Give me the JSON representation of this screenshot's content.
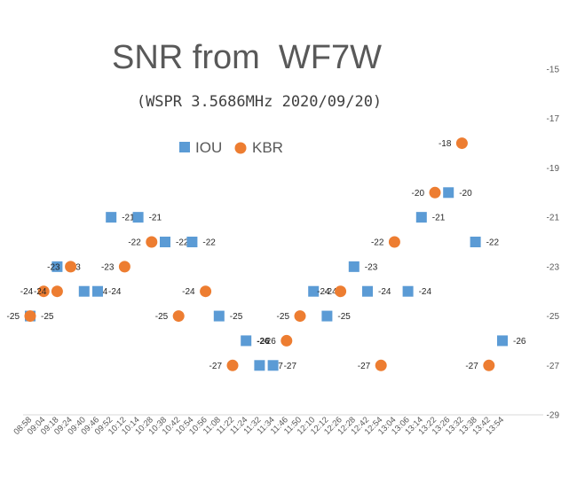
{
  "chart_data": {
    "type": "scatter",
    "title": "SNR from  WF7W",
    "subtitle": "(WSPR 3.5686MHz 2020/09/20)",
    "xlabel": "",
    "ylabel": "",
    "ylim": [
      -29,
      -15
    ],
    "yticks": [
      -15,
      -17,
      -19,
      -21,
      -23,
      -25,
      -27,
      -29
    ],
    "grid": false,
    "legend_position": "top",
    "categories": [
      "08:58",
      "09:04",
      "09:18",
      "09:24",
      "09:40",
      "09:46",
      "09:52",
      "10:12",
      "10:14",
      "10:28",
      "10:38",
      "10:42",
      "10:54",
      "10:56",
      "11:08",
      "11:22",
      "11:24",
      "11:32",
      "11:34",
      "11:46",
      "11:50",
      "12:10",
      "12:12",
      "12:26",
      "12:28",
      "12:42",
      "12:54",
      "13:04",
      "13:06",
      "13:14",
      "13:22",
      "13:26",
      "13:32",
      "13:38",
      "13:42",
      "13:54"
    ],
    "series": [
      {
        "name": "IOU",
        "marker": "square",
        "color": "#5B9BD5",
        "points": [
          {
            "x": "08:58",
            "y": -25
          },
          {
            "x": "09:18",
            "y": -23
          },
          {
            "x": "09:40",
            "y": -24
          },
          {
            "x": "09:46",
            "y": -24
          },
          {
            "x": "09:52",
            "y": -21
          },
          {
            "x": "10:14",
            "y": -21
          },
          {
            "x": "10:38",
            "y": -22
          },
          {
            "x": "10:54",
            "y": -22
          },
          {
            "x": "11:08",
            "y": -25
          },
          {
            "x": "11:24",
            "y": -26
          },
          {
            "x": "11:32",
            "y": -27
          },
          {
            "x": "11:34",
            "y": -27
          },
          {
            "x": "12:10",
            "y": -24
          },
          {
            "x": "12:12",
            "y": -25
          },
          {
            "x": "12:28",
            "y": -23
          },
          {
            "x": "12:42",
            "y": -24
          },
          {
            "x": "13:06",
            "y": -24
          },
          {
            "x": "13:14",
            "y": -21
          },
          {
            "x": "13:26",
            "y": -20
          },
          {
            "x": "13:38",
            "y": -22
          },
          {
            "x": "13:54",
            "y": -26
          }
        ]
      },
      {
        "name": "KBR",
        "marker": "circle",
        "color": "#ED7D31",
        "points": [
          {
            "x": "08:58",
            "y": -25
          },
          {
            "x": "09:04",
            "y": -24
          },
          {
            "x": "09:18",
            "y": -24
          },
          {
            "x": "09:24",
            "y": -23
          },
          {
            "x": "10:12",
            "y": -23
          },
          {
            "x": "10:28",
            "y": -22
          },
          {
            "x": "10:42",
            "y": -25
          },
          {
            "x": "10:56",
            "y": -24
          },
          {
            "x": "11:22",
            "y": -27
          },
          {
            "x": "11:46",
            "y": -26
          },
          {
            "x": "11:50",
            "y": -25
          },
          {
            "x": "12:26",
            "y": -24
          },
          {
            "x": "12:54",
            "y": -27
          },
          {
            "x": "13:04",
            "y": -22
          },
          {
            "x": "13:22",
            "y": -20
          },
          {
            "x": "13:32",
            "y": -18
          },
          {
            "x": "13:42",
            "y": -27
          }
        ]
      }
    ]
  }
}
